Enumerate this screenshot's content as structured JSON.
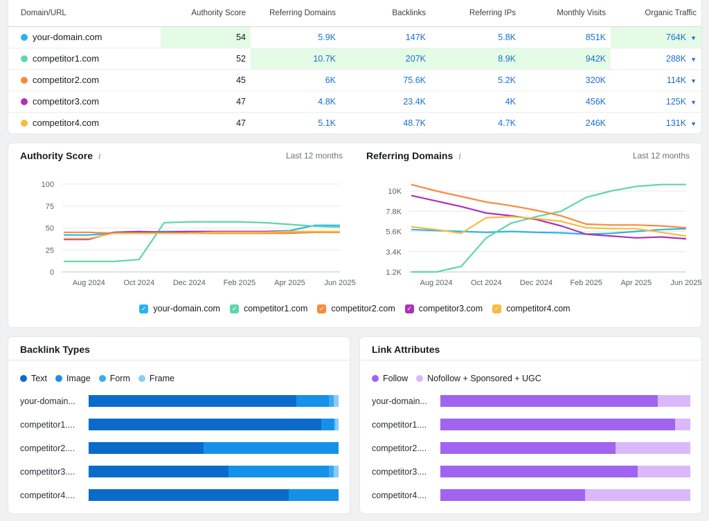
{
  "table": {
    "headers": [
      "Domain/URL",
      "Authority Score",
      "Referring Domains",
      "Backlinks",
      "Referring IPs",
      "Monthly Visits",
      "Organic Traffic"
    ],
    "rows": [
      {
        "domain": "your-domain.com",
        "color": "#2bb1f1",
        "authority": "54",
        "ref_domains": "5.9K",
        "backlinks": "147K",
        "ref_ips": "5.8K",
        "visits": "851K",
        "organic": "764K",
        "hl": [
          "authority",
          "organic"
        ]
      },
      {
        "domain": "competitor1.com",
        "color": "#5ed7a6",
        "authority": "52",
        "ref_domains": "10.7K",
        "backlinks": "207K",
        "ref_ips": "8.9K",
        "visits": "942K",
        "organic": "288K",
        "hl": [
          "ref_domains",
          "backlinks",
          "ref_ips",
          "visits"
        ]
      },
      {
        "domain": "competitor2.com",
        "color": "#fb8a3c",
        "authority": "45",
        "ref_domains": "6K",
        "backlinks": "75.6K",
        "ref_ips": "5.2K",
        "visits": "320K",
        "organic": "114K",
        "hl": []
      },
      {
        "domain": "competitor3.com",
        "color": "#ad31b9",
        "authority": "47",
        "ref_domains": "4.8K",
        "backlinks": "23.4K",
        "ref_ips": "4K",
        "visits": "456K",
        "organic": "125K",
        "hl": []
      },
      {
        "domain": "competitor4.com",
        "color": "#f7bc3c",
        "authority": "47",
        "ref_domains": "5.1K",
        "backlinks": "48.7K",
        "ref_ips": "4.7K",
        "visits": "246K",
        "organic": "131K",
        "hl": []
      }
    ]
  },
  "charts_panel": {
    "info_icon": "i",
    "legend": [
      {
        "label": "your-domain.com",
        "color": "#2bb1f1"
      },
      {
        "label": "competitor1.com",
        "color": "#5ed7a6"
      },
      {
        "label": "competitor2.com",
        "color": "#fb8a3c"
      },
      {
        "label": "competitor3.com",
        "color": "#ad31b9"
      },
      {
        "label": "competitor4.com",
        "color": "#f7bc3c"
      }
    ]
  },
  "chart_data": [
    {
      "type": "line",
      "title": "Authority Score",
      "period": "Last 12 months",
      "x_ticks": [
        "Aug 2024",
        "Oct 2024",
        "Dec 2024",
        "Feb 2025",
        "Apr 2025",
        "Jun 2025"
      ],
      "y_ticks": [
        "0",
        "25",
        "50",
        "75",
        "100"
      ],
      "ylim": [
        0,
        100
      ],
      "x": [
        "Jul 2024",
        "Aug 2024",
        "Sep 2024",
        "Oct 2024",
        "Nov 2024",
        "Dec 2024",
        "Jan 2025",
        "Feb 2025",
        "Mar 2025",
        "Apr 2025",
        "May 2025",
        "Jun 2025"
      ],
      "series": [
        {
          "name": "your-domain.com",
          "color": "#2bb1f1",
          "values": [
            42,
            42,
            44,
            45,
            46,
            46,
            46,
            46,
            46,
            47,
            53,
            53
          ]
        },
        {
          "name": "competitor1.com",
          "color": "#5ed7a6",
          "values": [
            12,
            12,
            12,
            14,
            56,
            57,
            57,
            57,
            56,
            54,
            52,
            51
          ]
        },
        {
          "name": "competitor2.com",
          "color": "#fb8a3c",
          "values": [
            45,
            45,
            44,
            44,
            44,
            44,
            44,
            44,
            44,
            44,
            45,
            45
          ]
        },
        {
          "name": "competitor3.com",
          "color": "#ad31b9",
          "values": [
            37,
            37,
            45,
            46,
            45,
            46,
            46,
            46,
            46,
            46,
            46,
            46
          ]
        },
        {
          "name": "competitor4.com",
          "color": "#f7bc3c",
          "values": [
            38,
            38,
            44,
            44,
            44,
            44,
            45,
            45,
            45,
            46,
            46,
            46
          ]
        }
      ]
    },
    {
      "type": "line",
      "title": "Referring Domains",
      "period": "Last 12 months",
      "x_ticks": [
        "Aug 2024",
        "Oct 2024",
        "Dec 2024",
        "Feb 2025",
        "Apr 2025",
        "Jun 2025"
      ],
      "y_ticks": [
        "1.2K",
        "3.4K",
        "5.6K",
        "7.8K",
        "10K"
      ],
      "ylim": [
        1200,
        10000
      ],
      "x": [
        "Jul 2024",
        "Aug 2024",
        "Sep 2024",
        "Oct 2024",
        "Nov 2024",
        "Dec 2024",
        "Jan 2025",
        "Feb 2025",
        "Mar 2025",
        "Apr 2025",
        "May 2025",
        "Jun 2025"
      ],
      "series": [
        {
          "name": "your-domain.com",
          "color": "#2bb1f1",
          "values": [
            5800,
            5700,
            5600,
            5500,
            5600,
            5500,
            5450,
            5300,
            5400,
            5600,
            5800,
            5900
          ]
        },
        {
          "name": "competitor1.com",
          "color": "#5ed7a6",
          "values": [
            1200,
            1200,
            1800,
            4900,
            6500,
            7200,
            7800,
            9300,
            10000,
            10500,
            10700,
            10700
          ]
        },
        {
          "name": "competitor2.com",
          "color": "#fb8a3c",
          "values": [
            10700,
            10000,
            9400,
            8800,
            8400,
            7900,
            7300,
            6400,
            6300,
            6300,
            6200,
            6000
          ]
        },
        {
          "name": "competitor3.com",
          "color": "#ad31b9",
          "values": [
            9500,
            8900,
            8300,
            7600,
            7300,
            6900,
            6200,
            5300,
            5100,
            4900,
            5000,
            4800
          ]
        },
        {
          "name": "competitor4.com",
          "color": "#f7bc3c",
          "values": [
            6100,
            5800,
            5400,
            7100,
            7200,
            7000,
            6700,
            6000,
            5900,
            5900,
            5500,
            5100
          ]
        }
      ]
    },
    {
      "type": "bar",
      "title": "Backlink Types",
      "stacked": true,
      "legend": [
        {
          "label": "Text",
          "color": "#0b6bcb"
        },
        {
          "label": "Image",
          "color": "#1591ea"
        },
        {
          "label": "Form",
          "color": "#3aa9f4"
        },
        {
          "label": "Frame",
          "color": "#8ccaf8"
        }
      ],
      "categories": [
        "your-domain...",
        "competitor1....",
        "competitor2....",
        "competitor3....",
        "competitor4...."
      ],
      "series": [
        {
          "name": "Text",
          "color": "#0b6bcb",
          "values": [
            83,
            93,
            46,
            56,
            80
          ]
        },
        {
          "name": "Image",
          "color": "#1591ea",
          "values": [
            13,
            5,
            54,
            40,
            20
          ]
        },
        {
          "name": "Form",
          "color": "#3aa9f4",
          "values": [
            2,
            0.5,
            0,
            2,
            0
          ]
        },
        {
          "name": "Frame",
          "color": "#8ccaf8",
          "values": [
            2,
            1.5,
            0,
            2,
            0
          ]
        }
      ]
    },
    {
      "type": "bar",
      "title": "Link Attributes",
      "stacked": true,
      "legend": [
        {
          "label": "Follow",
          "color": "#a064f0"
        },
        {
          "label": "Nofollow + Sponsored + UGC",
          "color": "#dab8fb"
        }
      ],
      "categories": [
        "your-domain...",
        "competitor1....",
        "competitor2....",
        "competitor3....",
        "competitor4...."
      ],
      "series": [
        {
          "name": "Follow",
          "color": "#a064f0",
          "values": [
            87,
            94,
            70,
            79,
            58
          ]
        },
        {
          "name": "Nofollow + Sponsored + UGC",
          "color": "#dab8fb",
          "values": [
            13,
            6,
            30,
            21,
            42
          ]
        }
      ]
    }
  ]
}
